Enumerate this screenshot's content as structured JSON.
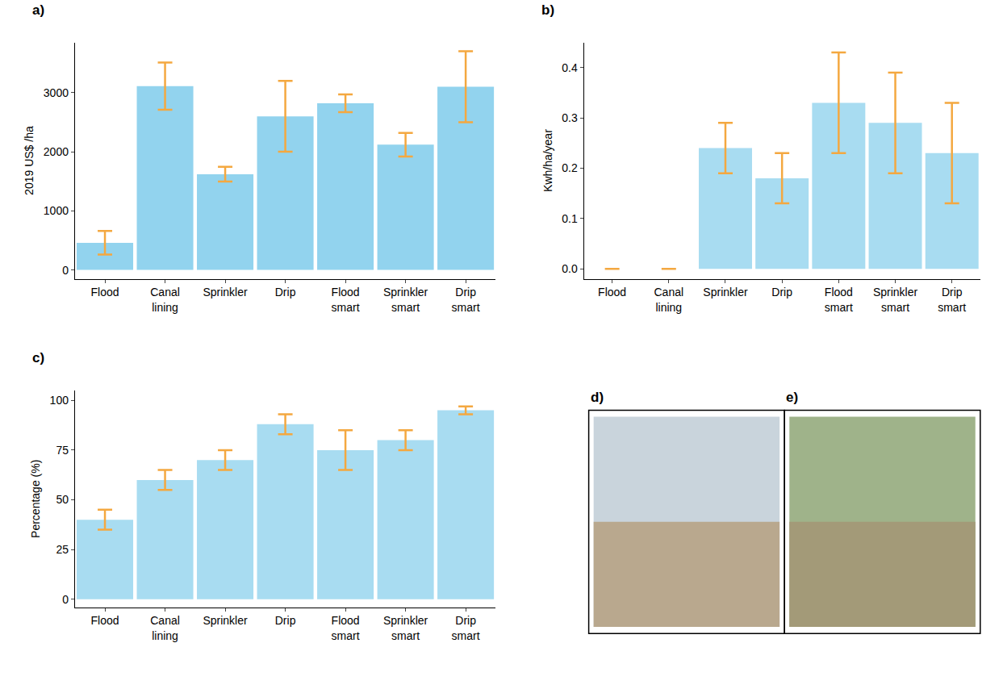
{
  "chart_data": [
    {
      "type": "bar",
      "title": "a)",
      "categories": [
        "Flood",
        "Canal lining",
        "Sprinkler",
        "Drip",
        "Flood smart",
        "Sprinkler smart",
        "Drip smart"
      ],
      "values": [
        460,
        3110,
        1620,
        2600,
        2820,
        2120,
        3100
      ],
      "error": [
        200,
        400,
        125,
        600,
        150,
        200,
        600
      ],
      "color": "#92d3ee",
      "error_color": "#f4a840",
      "y_label": "2019 US$ /ha",
      "ylim": [
        -150,
        3850
      ],
      "yticks": [
        0,
        1000,
        2000,
        3000
      ],
      "grid": false
    },
    {
      "type": "bar",
      "title": "b)",
      "categories": [
        "Flood",
        "Canal lining",
        "Sprinkler",
        "Drip",
        "Flood smart",
        "Sprinkler smart",
        "Drip smart"
      ],
      "values": [
        0,
        0,
        0.24,
        0.18,
        0.33,
        0.29,
        0.23
      ],
      "error": [
        0,
        0,
        0.05,
        0.05,
        0.1,
        0.1,
        0.1
      ],
      "color": "#a8dcf1",
      "error_color": "#f4a840",
      "y_label": "Kwh/ha/year",
      "ylim": [
        -0.02,
        0.45
      ],
      "yticks": [
        {
          "value": 0,
          "label": "0.0"
        },
        0.1,
        0.2,
        0.3,
        0.4
      ],
      "grid": false
    },
    {
      "type": "bar",
      "title": "c)",
      "categories": [
        "Flood",
        "Canal lining",
        "Sprinkler",
        "Drip",
        "Flood smart",
        "Sprinkler smart",
        "Drip smart"
      ],
      "values": [
        40,
        60,
        70,
        88,
        75,
        80,
        95
      ],
      "error": [
        5,
        5,
        5,
        5,
        10,
        5,
        2
      ],
      "color": "#a8dcf1",
      "error_color": "#f4a840",
      "y_label": "Percentage (%)",
      "ylim": [
        -4,
        105
      ],
      "yticks": [
        0,
        25,
        50,
        75,
        100
      ],
      "grid": false
    }
  ],
  "images": [
    {
      "label": "d)"
    },
    {
      "label": "e)"
    }
  ]
}
